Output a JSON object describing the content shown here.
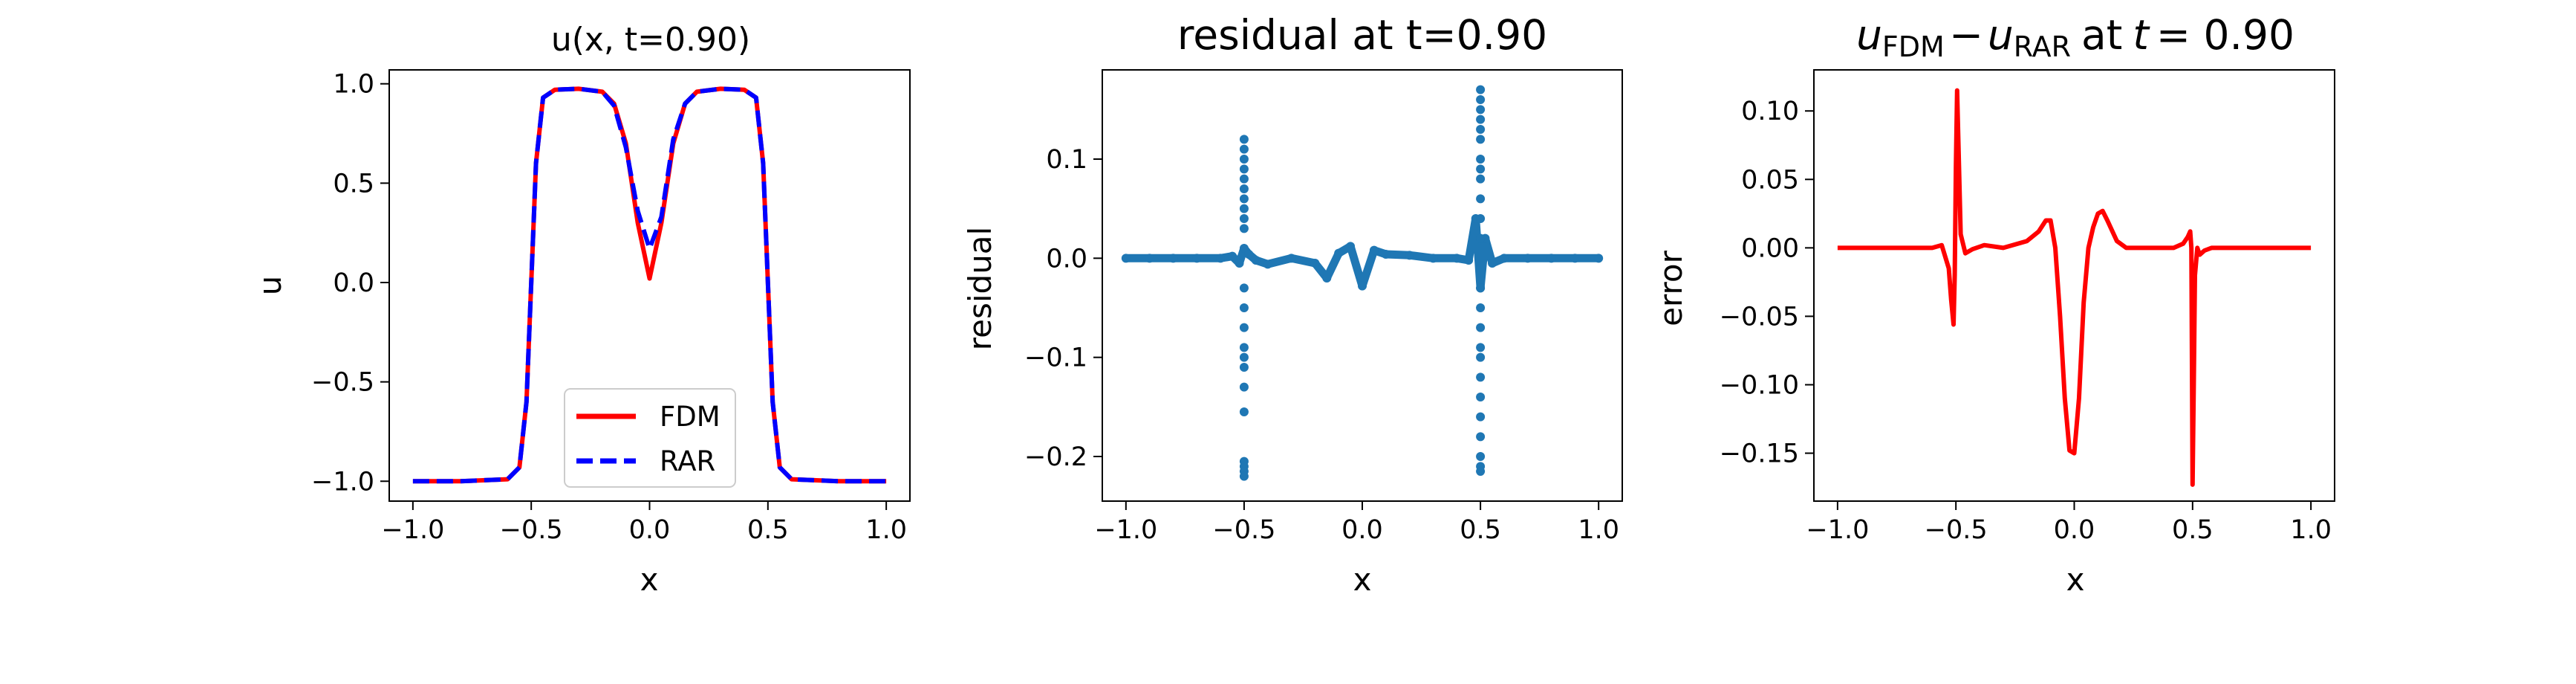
{
  "chart_data": [
    {
      "type": "line",
      "title": "u(x, t=0.90)",
      "xlabel": "x",
      "ylabel": "u",
      "xlim": [
        -1.1,
        1.1
      ],
      "ylim": [
        -1.1,
        1.07
      ],
      "xticks": [
        -1.0,
        -0.5,
        0.0,
        0.5,
        1.0
      ],
      "xtick_labels": [
        "−1.0",
        "−0.5",
        "0.0",
        "0.5",
        "1.0"
      ],
      "yticks": [
        -1.0,
        -0.5,
        0.0,
        0.5,
        1.0
      ],
      "ytick_labels": [
        "−1.0",
        "−0.5",
        "0.0",
        "0.5",
        "1.0"
      ],
      "legend_position": "lower center",
      "series": [
        {
          "name": "FDM",
          "color": "#ff0000",
          "style": "solid",
          "x": [
            -1.0,
            -0.8,
            -0.6,
            -0.55,
            -0.52,
            -0.5,
            -0.48,
            -0.45,
            -0.4,
            -0.3,
            -0.2,
            -0.15,
            -0.1,
            -0.05,
            0.0,
            0.05,
            0.1,
            0.15,
            0.2,
            0.3,
            0.4,
            0.45,
            0.48,
            0.5,
            0.52,
            0.55,
            0.6,
            0.8,
            1.0
          ],
          "y": [
            -1.0,
            -1.0,
            -0.99,
            -0.93,
            -0.6,
            0.0,
            0.6,
            0.93,
            0.97,
            0.975,
            0.96,
            0.9,
            0.7,
            0.3,
            0.02,
            0.3,
            0.7,
            0.9,
            0.96,
            0.975,
            0.97,
            0.93,
            0.6,
            0.0,
            -0.6,
            -0.93,
            -0.99,
            -1.0,
            -1.0
          ]
        },
        {
          "name": "RAR",
          "color": "#0000ff",
          "style": "dashed",
          "x": [
            -1.0,
            -0.8,
            -0.6,
            -0.55,
            -0.52,
            -0.5,
            -0.48,
            -0.45,
            -0.4,
            -0.3,
            -0.2,
            -0.15,
            -0.1,
            -0.05,
            0.0,
            0.05,
            0.1,
            0.15,
            0.2,
            0.3,
            0.4,
            0.45,
            0.48,
            0.5,
            0.52,
            0.55,
            0.6,
            0.8,
            1.0
          ],
          "y": [
            -1.0,
            -1.0,
            -0.99,
            -0.93,
            -0.6,
            0.0,
            0.6,
            0.93,
            0.97,
            0.975,
            0.96,
            0.89,
            0.68,
            0.36,
            0.17,
            0.33,
            0.72,
            0.9,
            0.96,
            0.975,
            0.97,
            0.93,
            0.6,
            0.0,
            -0.6,
            -0.93,
            -0.99,
            -1.0,
            -1.0
          ]
        }
      ]
    },
    {
      "type": "scatter",
      "title": "residual at t=0.90",
      "xlabel": "x",
      "ylabel": "residual",
      "xlim": [
        -1.1,
        1.1
      ],
      "ylim": [
        -0.245,
        0.19
      ],
      "xticks": [
        -1.0,
        -0.5,
        0.0,
        0.5,
        1.0
      ],
      "xtick_labels": [
        "−1.0",
        "−0.5",
        "0.0",
        "0.5",
        "1.0"
      ],
      "yticks": [
        -0.2,
        -0.1,
        0.0,
        0.1
      ],
      "ytick_labels": [
        "−0.2",
        "−0.1",
        "0.0",
        "0.1"
      ],
      "color": "#1f77b4",
      "series": [
        {
          "x": [
            -1.0,
            -0.9,
            -0.8,
            -0.7,
            -0.6,
            -0.55,
            -0.52,
            -0.5,
            -0.48,
            -0.45,
            -0.4,
            -0.3,
            -0.2,
            -0.15,
            -0.1,
            -0.05,
            0.0,
            0.05,
            0.1,
            0.2,
            0.3,
            0.4,
            0.45,
            0.48,
            0.5,
            0.52,
            0.55,
            0.6,
            0.7,
            0.8,
            0.9,
            1.0
          ],
          "y": [
            0.0,
            0.0,
            0.0,
            0.0,
            0.0,
            0.002,
            -0.005,
            0.01,
            0.004,
            -0.002,
            -0.006,
            0.0,
            -0.005,
            -0.02,
            0.005,
            0.012,
            -0.028,
            0.008,
            0.004,
            0.003,
            0.0,
            0.0,
            -0.002,
            0.04,
            -0.03,
            0.02,
            -0.005,
            0.0,
            0.0,
            0.0,
            0.0,
            0.0
          ]
        },
        {
          "x": [
            -0.5,
            -0.5,
            -0.5,
            -0.5,
            -0.5,
            -0.5,
            -0.5,
            -0.5,
            -0.5,
            -0.5,
            -0.5,
            -0.5,
            -0.5,
            -0.5,
            -0.5,
            -0.5,
            -0.5,
            -0.5,
            -0.5,
            -0.5,
            -0.5,
            -0.5
          ],
          "y": [
            0.12,
            0.11,
            0.1,
            0.09,
            0.08,
            0.07,
            0.06,
            0.05,
            0.04,
            0.03,
            -0.03,
            -0.05,
            -0.07,
            -0.09,
            -0.1,
            -0.11,
            -0.13,
            -0.155,
            -0.205,
            -0.21,
            -0.215,
            -0.22
          ]
        },
        {
          "x": [
            0.5,
            0.5,
            0.5,
            0.5,
            0.5,
            0.5,
            0.5,
            0.5,
            0.5,
            0.5,
            0.5,
            0.5,
            0.5,
            0.5,
            0.5,
            0.5,
            0.5,
            0.5,
            0.5,
            0.5,
            0.5,
            0.5,
            0.5,
            0.5
          ],
          "y": [
            0.17,
            0.16,
            0.15,
            0.14,
            0.13,
            0.12,
            0.1,
            0.09,
            0.08,
            0.06,
            0.04,
            0.02,
            -0.03,
            -0.05,
            -0.07,
            -0.09,
            -0.1,
            -0.12,
            -0.14,
            -0.16,
            -0.18,
            -0.2,
            -0.21,
            -0.215
          ]
        }
      ]
    },
    {
      "type": "line",
      "title": "u_FDM − u_RAR at t = 0.90",
      "title_parts": {
        "u1": "u",
        "sub1": "FDM",
        "op": "−",
        "u2": "u",
        "sub2": "RAR",
        "at": "at",
        "tvar": "t",
        "eq": "= 0.90"
      },
      "xlabel": "x",
      "ylabel": "error",
      "xlim": [
        -1.1,
        1.1
      ],
      "ylim": [
        -0.185,
        0.13
      ],
      "xticks": [
        -1.0,
        -0.5,
        0.0,
        0.5,
        1.0
      ],
      "xtick_labels": [
        "−1.0",
        "−0.5",
        "0.0",
        "0.5",
        "1.0"
      ],
      "yticks": [
        -0.15,
        -0.1,
        -0.05,
        0.0,
        0.05,
        0.1
      ],
      "ytick_labels": [
        "−0.15",
        "−0.10",
        "−0.05",
        "0.00",
        "0.05",
        "0.10"
      ],
      "series": [
        {
          "color": "#ff0000",
          "x": [
            -1.0,
            -0.8,
            -0.6,
            -0.56,
            -0.53,
            -0.52,
            -0.51,
            -0.505,
            -0.5,
            -0.495,
            -0.49,
            -0.48,
            -0.46,
            -0.43,
            -0.38,
            -0.3,
            -0.2,
            -0.15,
            -0.12,
            -0.1,
            -0.08,
            -0.06,
            -0.04,
            -0.02,
            0.0,
            0.02,
            0.04,
            0.06,
            0.08,
            0.1,
            0.12,
            0.14,
            0.18,
            0.22,
            0.28,
            0.35,
            0.42,
            0.46,
            0.48,
            0.49,
            0.495,
            0.5,
            0.505,
            0.51,
            0.52,
            0.53,
            0.55,
            0.58,
            0.62,
            0.7,
            0.85,
            1.0
          ],
          "y": [
            0.0,
            0.0,
            0.0,
            0.002,
            -0.015,
            -0.038,
            -0.056,
            -0.02,
            0.06,
            0.115,
            0.08,
            0.01,
            -0.004,
            -0.001,
            0.002,
            0.0,
            0.005,
            0.012,
            0.02,
            0.02,
            0.0,
            -0.05,
            -0.11,
            -0.148,
            -0.15,
            -0.11,
            -0.04,
            0.0,
            0.015,
            0.025,
            0.027,
            0.02,
            0.005,
            0.0,
            0.0,
            0.0,
            0.0,
            0.003,
            0.008,
            0.012,
            0.0,
            -0.173,
            -0.1,
            -0.02,
            0.0,
            -0.005,
            -0.002,
            0.0,
            0.0,
            0.0,
            0.0,
            0.0
          ]
        }
      ]
    }
  ]
}
